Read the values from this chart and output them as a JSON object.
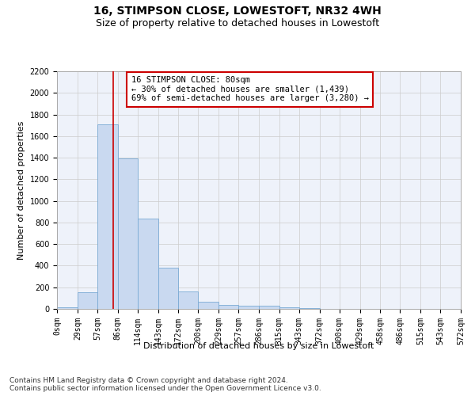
{
  "title": "16, STIMPSON CLOSE, LOWESTOFT, NR32 4WH",
  "subtitle": "Size of property relative to detached houses in Lowestoft",
  "xlabel": "Distribution of detached houses by size in Lowestoft",
  "ylabel": "Number of detached properties",
  "bin_edges": [
    0,
    29,
    57,
    86,
    114,
    143,
    172,
    200,
    229,
    257,
    286,
    315,
    343,
    372,
    400,
    429,
    458,
    486,
    515,
    543,
    572
  ],
  "bar_heights": [
    15,
    155,
    1710,
    1390,
    835,
    385,
    165,
    65,
    35,
    28,
    28,
    15,
    5,
    0,
    0,
    0,
    0,
    0,
    0,
    0
  ],
  "bar_color": "#c9d9f0",
  "bar_edgecolor": "#7aaad4",
  "grid_color": "#cccccc",
  "bg_color": "#eef2fa",
  "property_size": 80,
  "red_line_color": "#cc0000",
  "annotation_text": "16 STIMPSON CLOSE: 80sqm\n← 30% of detached houses are smaller (1,439)\n69% of semi-detached houses are larger (3,280) →",
  "annotation_box_color": "#ffffff",
  "annotation_box_edgecolor": "#cc0000",
  "ylim": [
    0,
    2200
  ],
  "yticks": [
    0,
    200,
    400,
    600,
    800,
    1000,
    1200,
    1400,
    1600,
    1800,
    2000,
    2200
  ],
  "footer_text": "Contains HM Land Registry data © Crown copyright and database right 2024.\nContains public sector information licensed under the Open Government Licence v3.0.",
  "title_fontsize": 10,
  "subtitle_fontsize": 9,
  "axis_label_fontsize": 8,
  "tick_fontsize": 7,
  "annotation_fontsize": 7.5,
  "footer_fontsize": 6.5
}
